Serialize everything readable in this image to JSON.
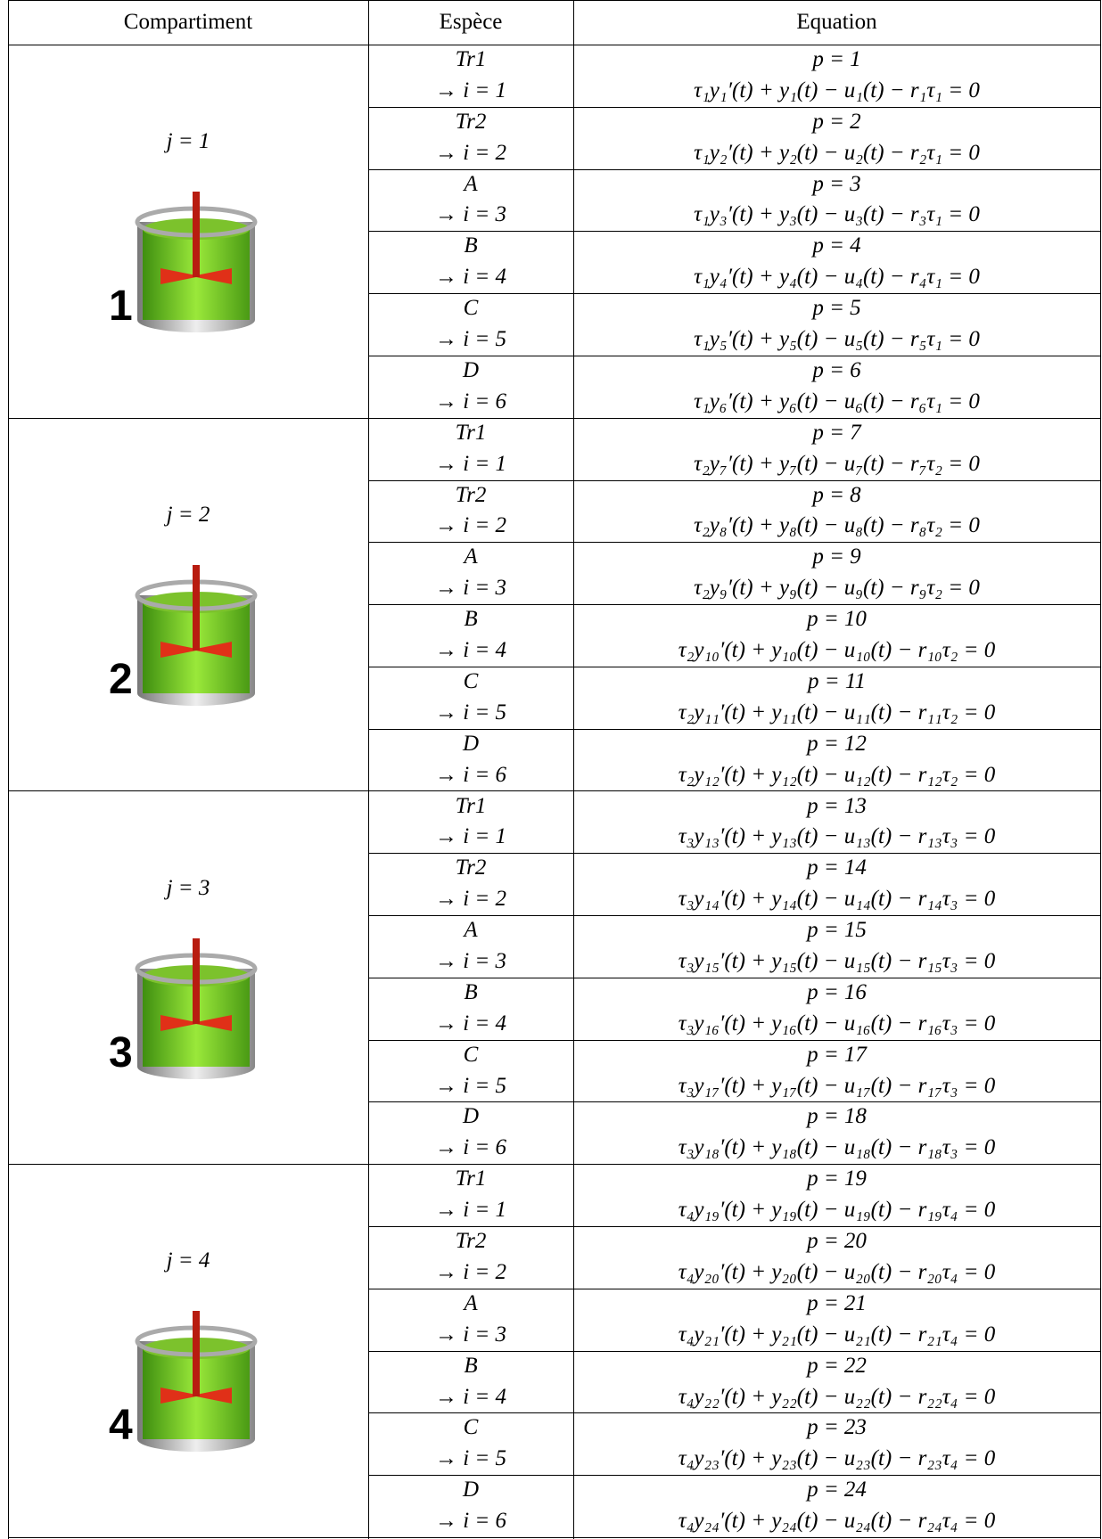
{
  "header": {
    "compartment": "Compartiment",
    "species": "Espèce",
    "equation": "Equation"
  },
  "compartments": [
    {
      "label": "j = 1",
      "number": "1",
      "rows": [
        {
          "species": "Tr1",
          "index": "→ i = 1",
          "p": "p = 1",
          "equation": "τ₁y₁′(t) + y₁(t) − u₁(t) − r₁τ₁ = 0"
        },
        {
          "species": "Tr2",
          "index": "→ i = 2",
          "p": "p = 2",
          "equation": "τ₁y₂′(t) + y₂(t) − u₂(t) − r₂τ₁ = 0"
        },
        {
          "species": "A",
          "index": "→ i = 3",
          "p": "p = 3",
          "equation": "τ₁y₃′(t) + y₃(t) − u₃(t) − r₃τ₁ = 0"
        },
        {
          "species": "B",
          "index": "→ i = 4",
          "p": "p = 4",
          "equation": "τ₁y₄′(t) + y₄(t) − u₄(t) − r₄τ₁ = 0"
        },
        {
          "species": "C",
          "index": "→ i = 5",
          "p": "p = 5",
          "equation": "τ₁y₅′(t) + y₅(t) − u₅(t) − r₅τ₁ = 0"
        },
        {
          "species": "D",
          "index": "→ i = 6",
          "p": "p = 6",
          "equation": "τ₁y₆′(t) + y₆(t) − u₆(t) − r₆τ₁ = 0"
        }
      ]
    },
    {
      "label": "j = 2",
      "number": "2",
      "rows": [
        {
          "species": "Tr1",
          "index": "→ i = 1",
          "p": "p = 7",
          "equation": "τ₂y₇′(t) + y₇(t) − u₇(t) − r₇τ₂ = 0"
        },
        {
          "species": "Tr2",
          "index": "→ i = 2",
          "p": "p = 8",
          "equation": "τ₂y₈′(t) + y₈(t) − u₈(t) − r₈τ₂ = 0"
        },
        {
          "species": "A",
          "index": "→ i = 3",
          "p": "p = 9",
          "equation": "τ₂y₉′(t) + y₉(t) − u₉(t) − r₉τ₂ = 0"
        },
        {
          "species": "B",
          "index": "→ i = 4",
          "p": "p = 10",
          "equation": "τ₂y₁₀′(t) + y₁₀(t) − u₁₀(t) − r₁₀τ₂ = 0"
        },
        {
          "species": "C",
          "index": "→ i = 5",
          "p": "p = 11",
          "equation": "τ₂y₁₁′(t) + y₁₁(t) − u₁₁(t) − r₁₁τ₂ = 0"
        },
        {
          "species": "D",
          "index": "→ i = 6",
          "p": "p = 12",
          "equation": "τ₂y₁₂′(t) + y₁₂(t) − u₁₂(t) − r₁₂τ₂ = 0"
        }
      ]
    },
    {
      "label": "j = 3",
      "number": "3",
      "rows": [
        {
          "species": "Tr1",
          "index": "→ i = 1",
          "p": "p = 13",
          "equation": "τ₃y₁₃′(t) + y₁₃(t) − u₁₃(t) − r₁₃τ₃ = 0"
        },
        {
          "species": "Tr2",
          "index": "→ i = 2",
          "p": "p = 14",
          "equation": "τ₃y₁₄′(t) + y₁₄(t) − u₁₄(t) − r₁₄τ₃ = 0"
        },
        {
          "species": "A",
          "index": "→ i = 3",
          "p": "p = 15",
          "equation": "τ₃y₁₅′(t) + y₁₅(t) − u₁₅(t) − r₁₅τ₃ = 0"
        },
        {
          "species": "B",
          "index": "→ i = 4",
          "p": "p = 16",
          "equation": "τ₃y₁₆′(t) + y₁₆(t) − u₁₆(t) − r₁₆τ₃ = 0"
        },
        {
          "species": "C",
          "index": "→ i = 5",
          "p": "p = 17",
          "equation": "τ₃y₁₇′(t) + y₁₇(t) − u₁₇(t) − r₁₇τ₃ = 0"
        },
        {
          "species": "D",
          "index": "→ i = 6",
          "p": "p = 18",
          "equation": "τ₃y₁₈′(t) + y₁₈(t) − u₁₈(t) − r₁₈τ₃ = 0"
        }
      ]
    },
    {
      "label": "j = 4",
      "number": "4",
      "rows": [
        {
          "species": "Tr1",
          "index": "→ i = 1",
          "p": "p = 19",
          "equation": "τ₄y₁₉′(t) + y₁₉(t) − u₁₉(t) − r₁₉τ₄ = 0"
        },
        {
          "species": "Tr2",
          "index": "→ i = 2",
          "p": "p = 20",
          "equation": "τ₄y₂₀′(t) + y₂₀(t) − u₂₀(t) − r₂₀τ₄ = 0"
        },
        {
          "species": "A",
          "index": "→ i = 3",
          "p": "p = 21",
          "equation": "τ₄y₂₁′(t) + y₂₁(t) − u₂₁(t) − r₂₁τ₄ = 0"
        },
        {
          "species": "B",
          "index": "→ i = 4",
          "p": "p = 22",
          "equation": "τ₄y₂₂′(t) + y₂₂(t) − u₂₂(t) − r₂₂τ₄ = 0"
        },
        {
          "species": "C",
          "index": "→ i = 5",
          "p": "p = 23",
          "equation": "τ₄y₂₃′(t) + y₂₃(t) − u₂₃(t) − r₂₃τ₄ = 0"
        },
        {
          "species": "D",
          "index": "→ i = 6",
          "p": "p = 24",
          "equation": "τ₄y₂₄′(t) + y₂₄(t) − u₂₄(t) − r₂₄τ₄ = 0"
        }
      ]
    }
  ]
}
